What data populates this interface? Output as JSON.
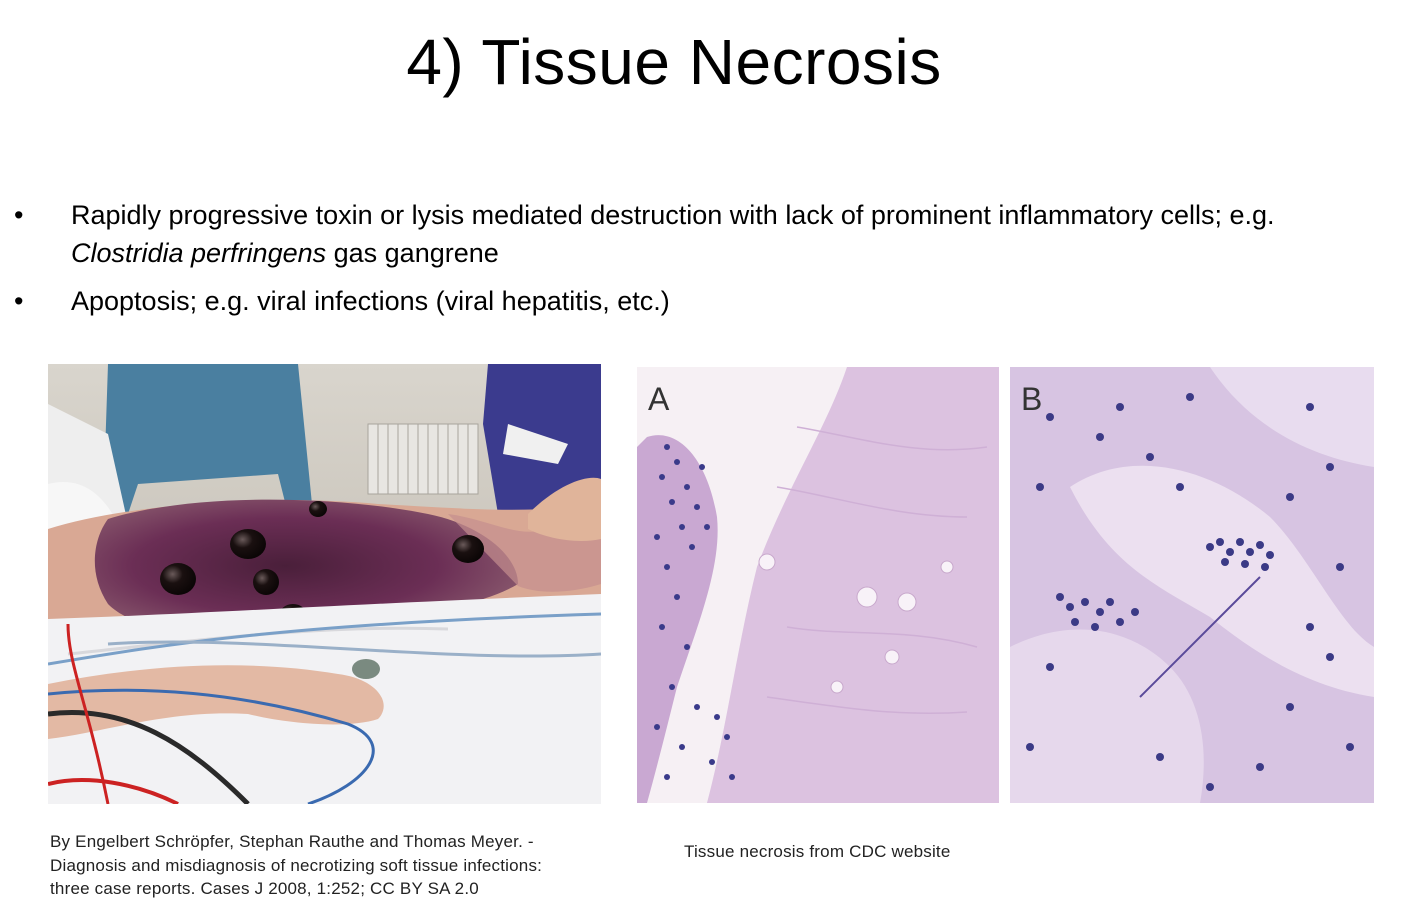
{
  "slide": {
    "title": "4) Tissue Necrosis"
  },
  "bullets": [
    {
      "marker": "•",
      "text_1": "Rapidly progressive toxin or lysis mediated destruction with lack of prominent inflammatory cells; e.g. ",
      "italic": "Clostridia perfringens",
      "text_2": " gas gangrene"
    },
    {
      "marker": "•",
      "text_1": "Apoptosis; e.g. viral infections (viral hepatitis, etc.)"
    }
  ],
  "figures": {
    "clinical_photo": {
      "alt": "gas gangrene leg photo"
    },
    "histology": {
      "panel_a_label": "A",
      "panel_b_label": "B"
    }
  },
  "captions": {
    "left": [
      "By Engelbert Schröpfer, Stephan Rauthe and Thomas Meyer. -",
      "Diagnosis and misdiagnosis of necrotizing soft tissue infections:",
      "three case reports. Cases J 2008, 1:252; CC BY SA 2.0"
    ],
    "right": "Tissue necrosis from CDC website"
  },
  "colors": {
    "bruise": "#5a2a4a",
    "bulla": "#1a1010",
    "he_pink": "#d8b8dc",
    "nuclei": "#3a3a8a"
  }
}
